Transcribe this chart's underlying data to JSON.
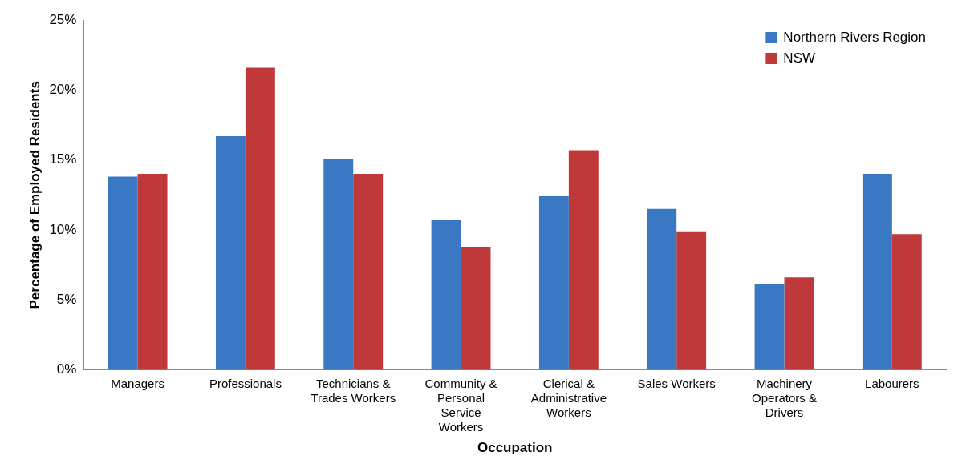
{
  "chart_data": {
    "type": "bar",
    "xlabel": "Occupation",
    "ylabel": "Percentage of Employed Residents",
    "categories": [
      "Managers",
      "Professionals",
      "Technicians & Trades Workers",
      "Community & Personal Service Workers",
      "Clerical & Administrative Workers",
      "Sales Workers",
      "Machinery Operators & Drivers",
      "Labourers"
    ],
    "series": [
      {
        "name": "Northern Rivers Region",
        "color": "#3a78c4",
        "values": [
          13.8,
          16.7,
          15.1,
          10.7,
          12.4,
          11.5,
          6.1,
          14.0
        ]
      },
      {
        "name": "NSW",
        "color": "#c0393a",
        "values": [
          14.0,
          21.6,
          14.0,
          8.8,
          15.7,
          9.9,
          6.6,
          9.7
        ]
      }
    ],
    "ylim": [
      0,
      25
    ],
    "yticks": [
      {
        "value": 0,
        "label": "0%"
      },
      {
        "value": 5,
        "label": "5%"
      },
      {
        "value": 10,
        "label": "10%"
      },
      {
        "value": 15,
        "label": "15%"
      },
      {
        "value": 20,
        "label": "20%"
      },
      {
        "value": 25,
        "label": "25%"
      }
    ],
    "grid": false,
    "legend": "top right"
  }
}
